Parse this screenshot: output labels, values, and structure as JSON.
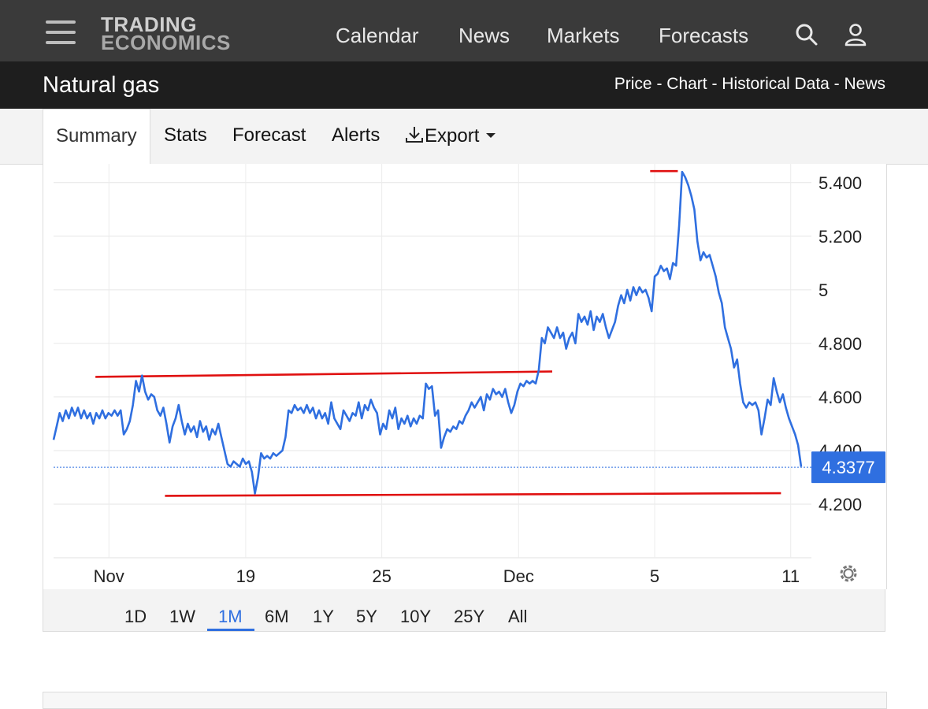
{
  "header": {
    "logo_line1": "TRADING",
    "logo_line2": "ECONOMICS",
    "nav": [
      "Calendar",
      "News",
      "Markets",
      "Forecasts"
    ],
    "icons": [
      "menu-icon",
      "search-icon",
      "user-icon"
    ]
  },
  "subheader": {
    "title": "Natural gas",
    "links": "Price - Chart - Historical Data - News"
  },
  "tabs": {
    "summary": "Summary",
    "stats": "Stats",
    "forecast": "Forecast",
    "alerts": "Alerts",
    "export": "Export"
  },
  "ranges": [
    "1D",
    "1W",
    "1M",
    "6M",
    "1Y",
    "5Y",
    "10Y",
    "25Y",
    "All"
  ],
  "active_range": "1M",
  "colors": {
    "line": "#2f6fe0",
    "annotation": "#e01010",
    "current_badge": "#2f6fe0",
    "topbar": "#3a3a3a",
    "subbar": "#1e1e1e"
  },
  "chart_data": {
    "type": "line",
    "title": "",
    "xlabel": "",
    "ylabel": "",
    "x_tick_labels": [
      "Nov",
      "19",
      "25",
      "Dec",
      "5",
      "11"
    ],
    "y_tick_labels": [
      "5.400",
      "5.200",
      "5",
      "4.800",
      "4.600",
      "4.400",
      "4.200"
    ],
    "ylim": [
      4.0,
      5.47
    ],
    "grid": true,
    "current_value": "4.3377",
    "current_value_num": 4.3377,
    "series": [
      {
        "values": [
          4.44,
          4.49,
          4.54,
          4.51,
          4.55,
          4.52,
          4.56,
          4.53,
          4.56,
          4.52,
          4.55,
          4.52,
          4.54,
          4.5,
          4.54,
          4.52,
          4.55,
          4.52,
          4.54,
          4.53,
          4.55,
          4.53,
          4.55,
          4.46,
          4.48,
          4.51,
          4.57,
          4.66,
          4.62,
          4.68,
          4.62,
          4.59,
          4.61,
          4.6,
          4.55,
          4.53,
          4.56,
          4.5,
          4.43,
          4.49,
          4.52,
          4.57,
          4.51,
          4.46,
          4.5,
          4.47,
          4.49,
          4.45,
          4.51,
          4.47,
          4.49,
          4.44,
          4.48,
          4.46,
          4.5,
          4.45,
          4.4,
          4.35,
          4.34,
          4.36,
          4.35,
          4.34,
          4.37,
          4.35,
          4.36,
          4.32,
          4.24,
          4.3,
          4.39,
          4.37,
          4.38,
          4.37,
          4.39,
          4.38,
          4.39,
          4.4,
          4.45,
          4.55,
          4.54,
          4.57,
          4.55,
          4.56,
          4.54,
          4.57,
          4.54,
          4.56,
          4.52,
          4.55,
          4.52,
          4.54,
          4.5,
          4.58,
          4.52,
          4.5,
          4.48,
          4.55,
          4.53,
          4.51,
          4.54,
          4.53,
          4.58,
          4.52,
          4.57,
          4.55,
          4.59,
          4.56,
          4.54,
          4.46,
          4.5,
          4.48,
          4.55,
          4.52,
          4.56,
          4.48,
          4.52,
          4.5,
          4.53,
          4.49,
          4.52,
          4.5,
          4.53,
          4.52,
          4.65,
          4.63,
          4.64,
          4.53,
          4.55,
          4.41,
          4.45,
          4.48,
          4.47,
          4.49,
          4.48,
          4.51,
          4.5,
          4.53,
          4.55,
          4.58,
          4.56,
          4.58,
          4.6,
          4.55,
          4.61,
          4.59,
          4.63,
          4.61,
          4.62,
          4.6,
          4.63,
          4.58,
          4.54,
          4.57,
          4.62,
          4.65,
          4.64,
          4.66,
          4.65,
          4.66,
          4.65,
          4.7,
          4.82,
          4.8,
          4.86,
          4.84,
          4.82,
          4.86,
          4.82,
          4.84,
          4.78,
          4.82,
          4.84,
          4.8,
          4.91,
          4.88,
          4.9,
          4.87,
          4.92,
          4.85,
          4.9,
          4.88,
          4.91,
          4.86,
          4.82,
          4.85,
          4.88,
          4.94,
          4.98,
          4.95,
          5.0,
          4.96,
          5.01,
          4.98,
          5.01,
          4.99,
          5.0,
          4.97,
          4.92,
          5.05,
          5.06,
          5.09,
          5.07,
          5.08,
          5.04,
          5.1,
          5.09,
          5.24,
          5.44,
          5.42,
          5.39,
          5.35,
          5.3,
          5.18,
          5.11,
          5.14,
          5.12,
          5.13,
          5.09,
          5.05,
          4.99,
          4.95,
          4.86,
          4.82,
          4.78,
          4.71,
          4.74,
          4.65,
          4.58,
          4.56,
          4.58,
          4.57,
          4.58,
          4.55,
          4.46,
          4.52,
          4.59,
          4.57,
          4.67,
          4.62,
          4.58,
          4.61,
          4.56,
          4.52,
          4.49,
          4.46,
          4.42,
          4.34
        ]
      }
    ],
    "annotations": [
      {
        "type": "trendline",
        "x": [
          0.056,
          0.667
        ],
        "y": [
          4.675,
          4.695
        ]
      },
      {
        "type": "trendline",
        "x": [
          0.149,
          0.973
        ],
        "y": [
          4.231,
          4.241
        ]
      },
      {
        "type": "hline",
        "x": [
          0.798,
          0.835
        ],
        "y": [
          5.443,
          5.443
        ]
      }
    ]
  }
}
